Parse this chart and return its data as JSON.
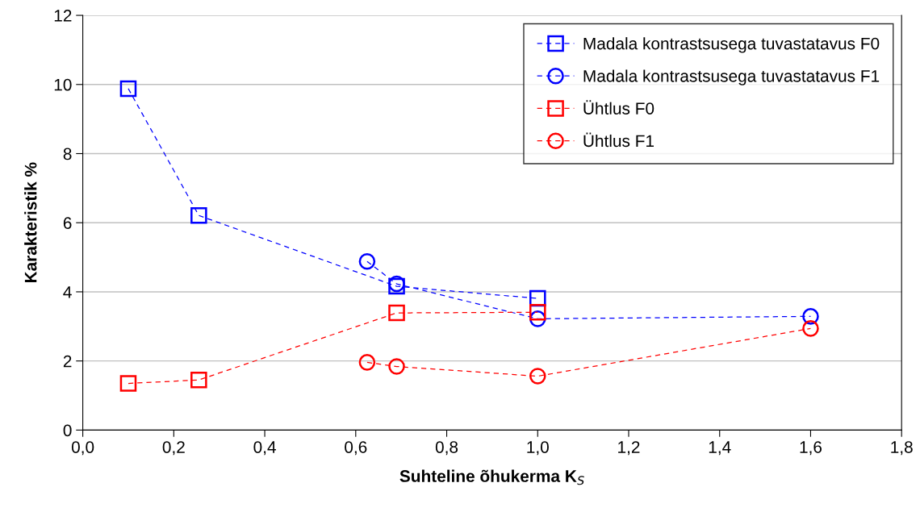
{
  "chart_data": {
    "type": "line",
    "xlabel": "Suhteline õhukerma K$_{S}$",
    "ylabel": "Karakteristik %",
    "xlim": [
      0,
      1.8
    ],
    "xticks": [
      {
        "value": 0,
        "label": "0,0"
      },
      {
        "value": 0.2,
        "label": "0,2"
      },
      {
        "value": 0.4,
        "label": "0,4"
      },
      {
        "value": 0.6,
        "label": "0,6"
      },
      {
        "value": 0.8,
        "label": "0,8"
      },
      {
        "value": 1.0,
        "label": "1,0"
      },
      {
        "value": 1.2,
        "label": "1,2"
      },
      {
        "value": 1.4,
        "label": "1,4"
      },
      {
        "value": 1.6,
        "label": "1,6"
      },
      {
        "value": 1.8,
        "label": "1,8"
      }
    ],
    "ylim": [
      0,
      12
    ],
    "yticks": [
      0,
      2,
      4,
      6,
      8,
      10,
      12
    ],
    "grid": "y",
    "legend": "top right",
    "line_style": "dashed",
    "series": [
      {
        "name": "Madala kontrastsusega tuvastatavus F0",
        "color": "#0000ff",
        "marker": "square",
        "x": [
          0.1,
          0.255,
          0.69,
          1.0
        ],
        "values": [
          9.88,
          6.21,
          4.16,
          3.81
        ]
      },
      {
        "name": "Madala kontrastsusega tuvastatavus F1",
        "color": "#0000ff",
        "marker": "circle",
        "x": [
          0.625,
          0.69,
          1.0,
          1.6
        ],
        "values": [
          4.88,
          4.23,
          3.22,
          3.29
        ]
      },
      {
        "name": "Ühtlus F0",
        "color": "#ff0000",
        "marker": "square",
        "x": [
          0.1,
          0.255,
          0.69,
          1.0
        ],
        "values": [
          1.35,
          1.45,
          3.39,
          3.41
        ]
      },
      {
        "name": "Ühtlus F1",
        "color": "#ff0000",
        "marker": "circle",
        "x": [
          0.625,
          0.69,
          1.0,
          1.6
        ],
        "values": [
          1.96,
          1.84,
          1.56,
          2.94
        ]
      }
    ]
  }
}
